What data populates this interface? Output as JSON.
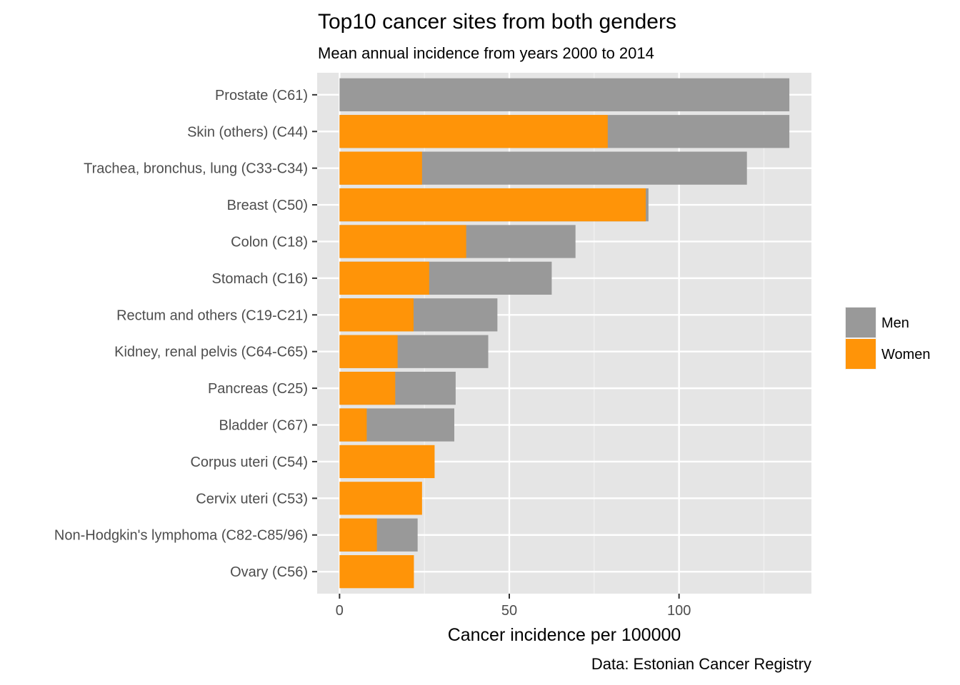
{
  "chart_data": {
    "type": "bar",
    "orientation": "horizontal",
    "stacking": "overlay",
    "title": "Top10 cancer sites from both genders",
    "subtitle": "Mean annual incidence from years 2000 to 2014",
    "xlabel": "Cancer incidence per 100000",
    "ylabel": "",
    "caption": "Data: Estonian Cancer Registry",
    "categories": [
      "Prostate (C61)",
      "Skin (others) (C44)",
      "Trachea, bronchus, lung (C33-C34)",
      "Breast (C50)",
      "Colon (C18)",
      "Stomach (C16)",
      "Rectum and others (C19-C21)",
      "Kidney, renal pelvis (C64-C65)",
      "Pancreas (C25)",
      "Bladder (C67)",
      "Corpus uteri (C54)",
      "Cervix uteri (C53)",
      "Non-Hodgkin's lymphoma (C82-C85/96)",
      "Ovary (C56)"
    ],
    "series": [
      {
        "name": "Men",
        "color": "#999999",
        "values": [
          132.5,
          132.5,
          120,
          91,
          69.5,
          62.5,
          46.5,
          43.8,
          34.2,
          33.8,
          null,
          null,
          23,
          null
        ]
      },
      {
        "name": "Women",
        "color": "#ff9408",
        "values": [
          null,
          79,
          24.3,
          90.2,
          37.3,
          26.4,
          21.8,
          17.1,
          16.4,
          8,
          28,
          24.3,
          11,
          21.9
        ]
      }
    ],
    "xlim": [
      -6.6,
      139
    ],
    "xticks": [
      0,
      50,
      100
    ],
    "xtick_labels": [
      "0",
      "50",
      "100"
    ],
    "grid": true,
    "legend": {
      "position": "right",
      "entries": [
        "Men",
        "Women"
      ]
    }
  }
}
